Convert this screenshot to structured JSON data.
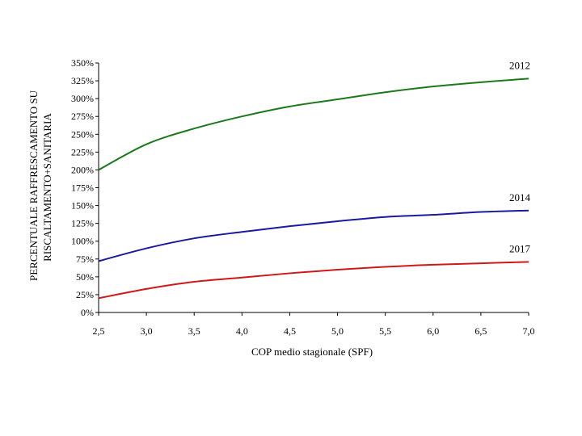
{
  "chart_data": {
    "type": "line",
    "title": "",
    "xlabel": "COP medio stagionale (SPF)",
    "ylabel_line1": "PERCENTUALE RAFFRESCAMENTO SU",
    "ylabel_line2": "RISCALTAMENTO+SANITARIA",
    "xlim": [
      2.5,
      7.0
    ],
    "ylim": [
      0,
      350
    ],
    "x_ticks": [
      2.5,
      3.0,
      3.5,
      4.0,
      4.5,
      5.0,
      5.5,
      6.0,
      6.5,
      7.0
    ],
    "x_tick_labels": [
      "2,5",
      "3,0",
      "3,5",
      "4,0",
      "4,5",
      "5,0",
      "5,5",
      "6,0",
      "6,5",
      "7,0"
    ],
    "y_ticks": [
      0,
      25,
      50,
      75,
      100,
      125,
      150,
      175,
      200,
      225,
      250,
      275,
      300,
      325,
      350
    ],
    "y_tick_labels": [
      "0%",
      "25%",
      "50%",
      "75%",
      "100%",
      "125%",
      "150%",
      "175%",
      "200%",
      "225%",
      "250%",
      "275%",
      "300%",
      "325%",
      "350%"
    ],
    "grid": false,
    "x": [
      2.5,
      3.0,
      3.5,
      4.0,
      4.5,
      5.0,
      5.5,
      6.0,
      6.5,
      7.0
    ],
    "series": [
      {
        "name": "2012",
        "color": "#1a7a1a",
        "values": [
          200,
          236,
          258,
          275,
          289,
          299,
          309,
          317,
          323,
          328
        ]
      },
      {
        "name": "2014",
        "color": "#1a1aa0",
        "values": [
          72,
          90,
          104,
          113,
          121,
          128,
          134,
          137,
          141,
          143
        ]
      },
      {
        "name": "2017",
        "color": "#d01818",
        "values": [
          20,
          33,
          43,
          49,
          55,
          60,
          64,
          67,
          69,
          71
        ]
      }
    ]
  }
}
